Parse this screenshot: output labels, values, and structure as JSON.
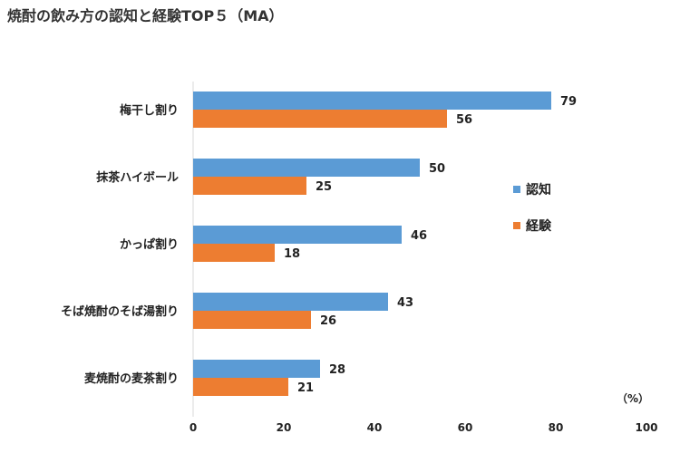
{
  "chart_data": {
    "type": "bar",
    "orientation": "horizontal",
    "title": "焼酎の飲み方の認知と経験TOP５（MA）",
    "categories": [
      "梅干し割り",
      "抹茶ハイボール",
      "かっぱ割り",
      "そば焼酎のそば湯割り",
      "麦焼酎の麦茶割り"
    ],
    "series": [
      {
        "name": "認知",
        "color": "#5B9BD5",
        "values": [
          79,
          50,
          46,
          43,
          28
        ]
      },
      {
        "name": "経験",
        "color": "#ED7D31",
        "values": [
          56,
          25,
          18,
          26,
          21
        ]
      }
    ],
    "xlim": [
      0,
      100
    ],
    "xticks": [
      0,
      20,
      40,
      60,
      80,
      100
    ],
    "unit": "（%）",
    "grid": false,
    "legend_position": "right"
  }
}
